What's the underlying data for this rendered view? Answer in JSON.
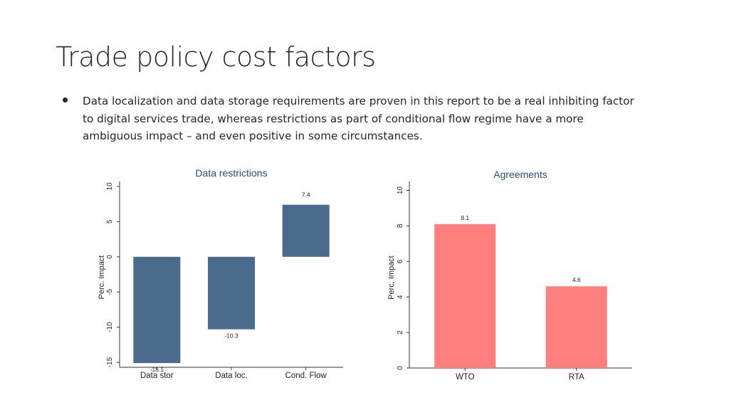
{
  "slide": {
    "title": "Trade policy cost factors",
    "bullets": [
      "Data localization and data storage requirements are proven in this report to be a real inhibiting factor to digital services trade, whereas restrictions as part of conditional flow regime have a more ambiguous impact – and even positive in some circumstances."
    ]
  },
  "chart_data": [
    {
      "type": "bar",
      "title": "Data restrictions",
      "categories": [
        "Data stor",
        "Data loc.",
        "Cond. Flow"
      ],
      "values": [
        -15.1,
        -10.3,
        7.4
      ],
      "value_labels": [
        "-15.1",
        "-10.3",
        "7.4"
      ],
      "xlabel": "",
      "ylabel": "Perc. Impact",
      "ylim": [
        -15.7,
        10.7
      ],
      "yticks": [
        -15,
        -10,
        -5,
        0,
        5,
        10
      ],
      "ytick_labels": [
        "-15",
        "-10",
        "-5",
        "0",
        "5",
        "10"
      ],
      "grid": false,
      "color": "#4a6b8c"
    },
    {
      "type": "bar",
      "title": "Agreements",
      "categories": [
        "WTO",
        "RTA"
      ],
      "values": [
        8.1,
        4.6
      ],
      "value_labels": [
        "8.1",
        "4.6"
      ],
      "xlabel": "",
      "ylabel": "Perc. Impact",
      "ylim": [
        0,
        10.5
      ],
      "yticks": [
        0,
        2,
        4,
        6,
        8,
        10
      ],
      "ytick_labels": [
        "0",
        "2",
        "4",
        "6",
        "8",
        "10"
      ],
      "grid": false,
      "color": "#ff7f7f"
    }
  ]
}
